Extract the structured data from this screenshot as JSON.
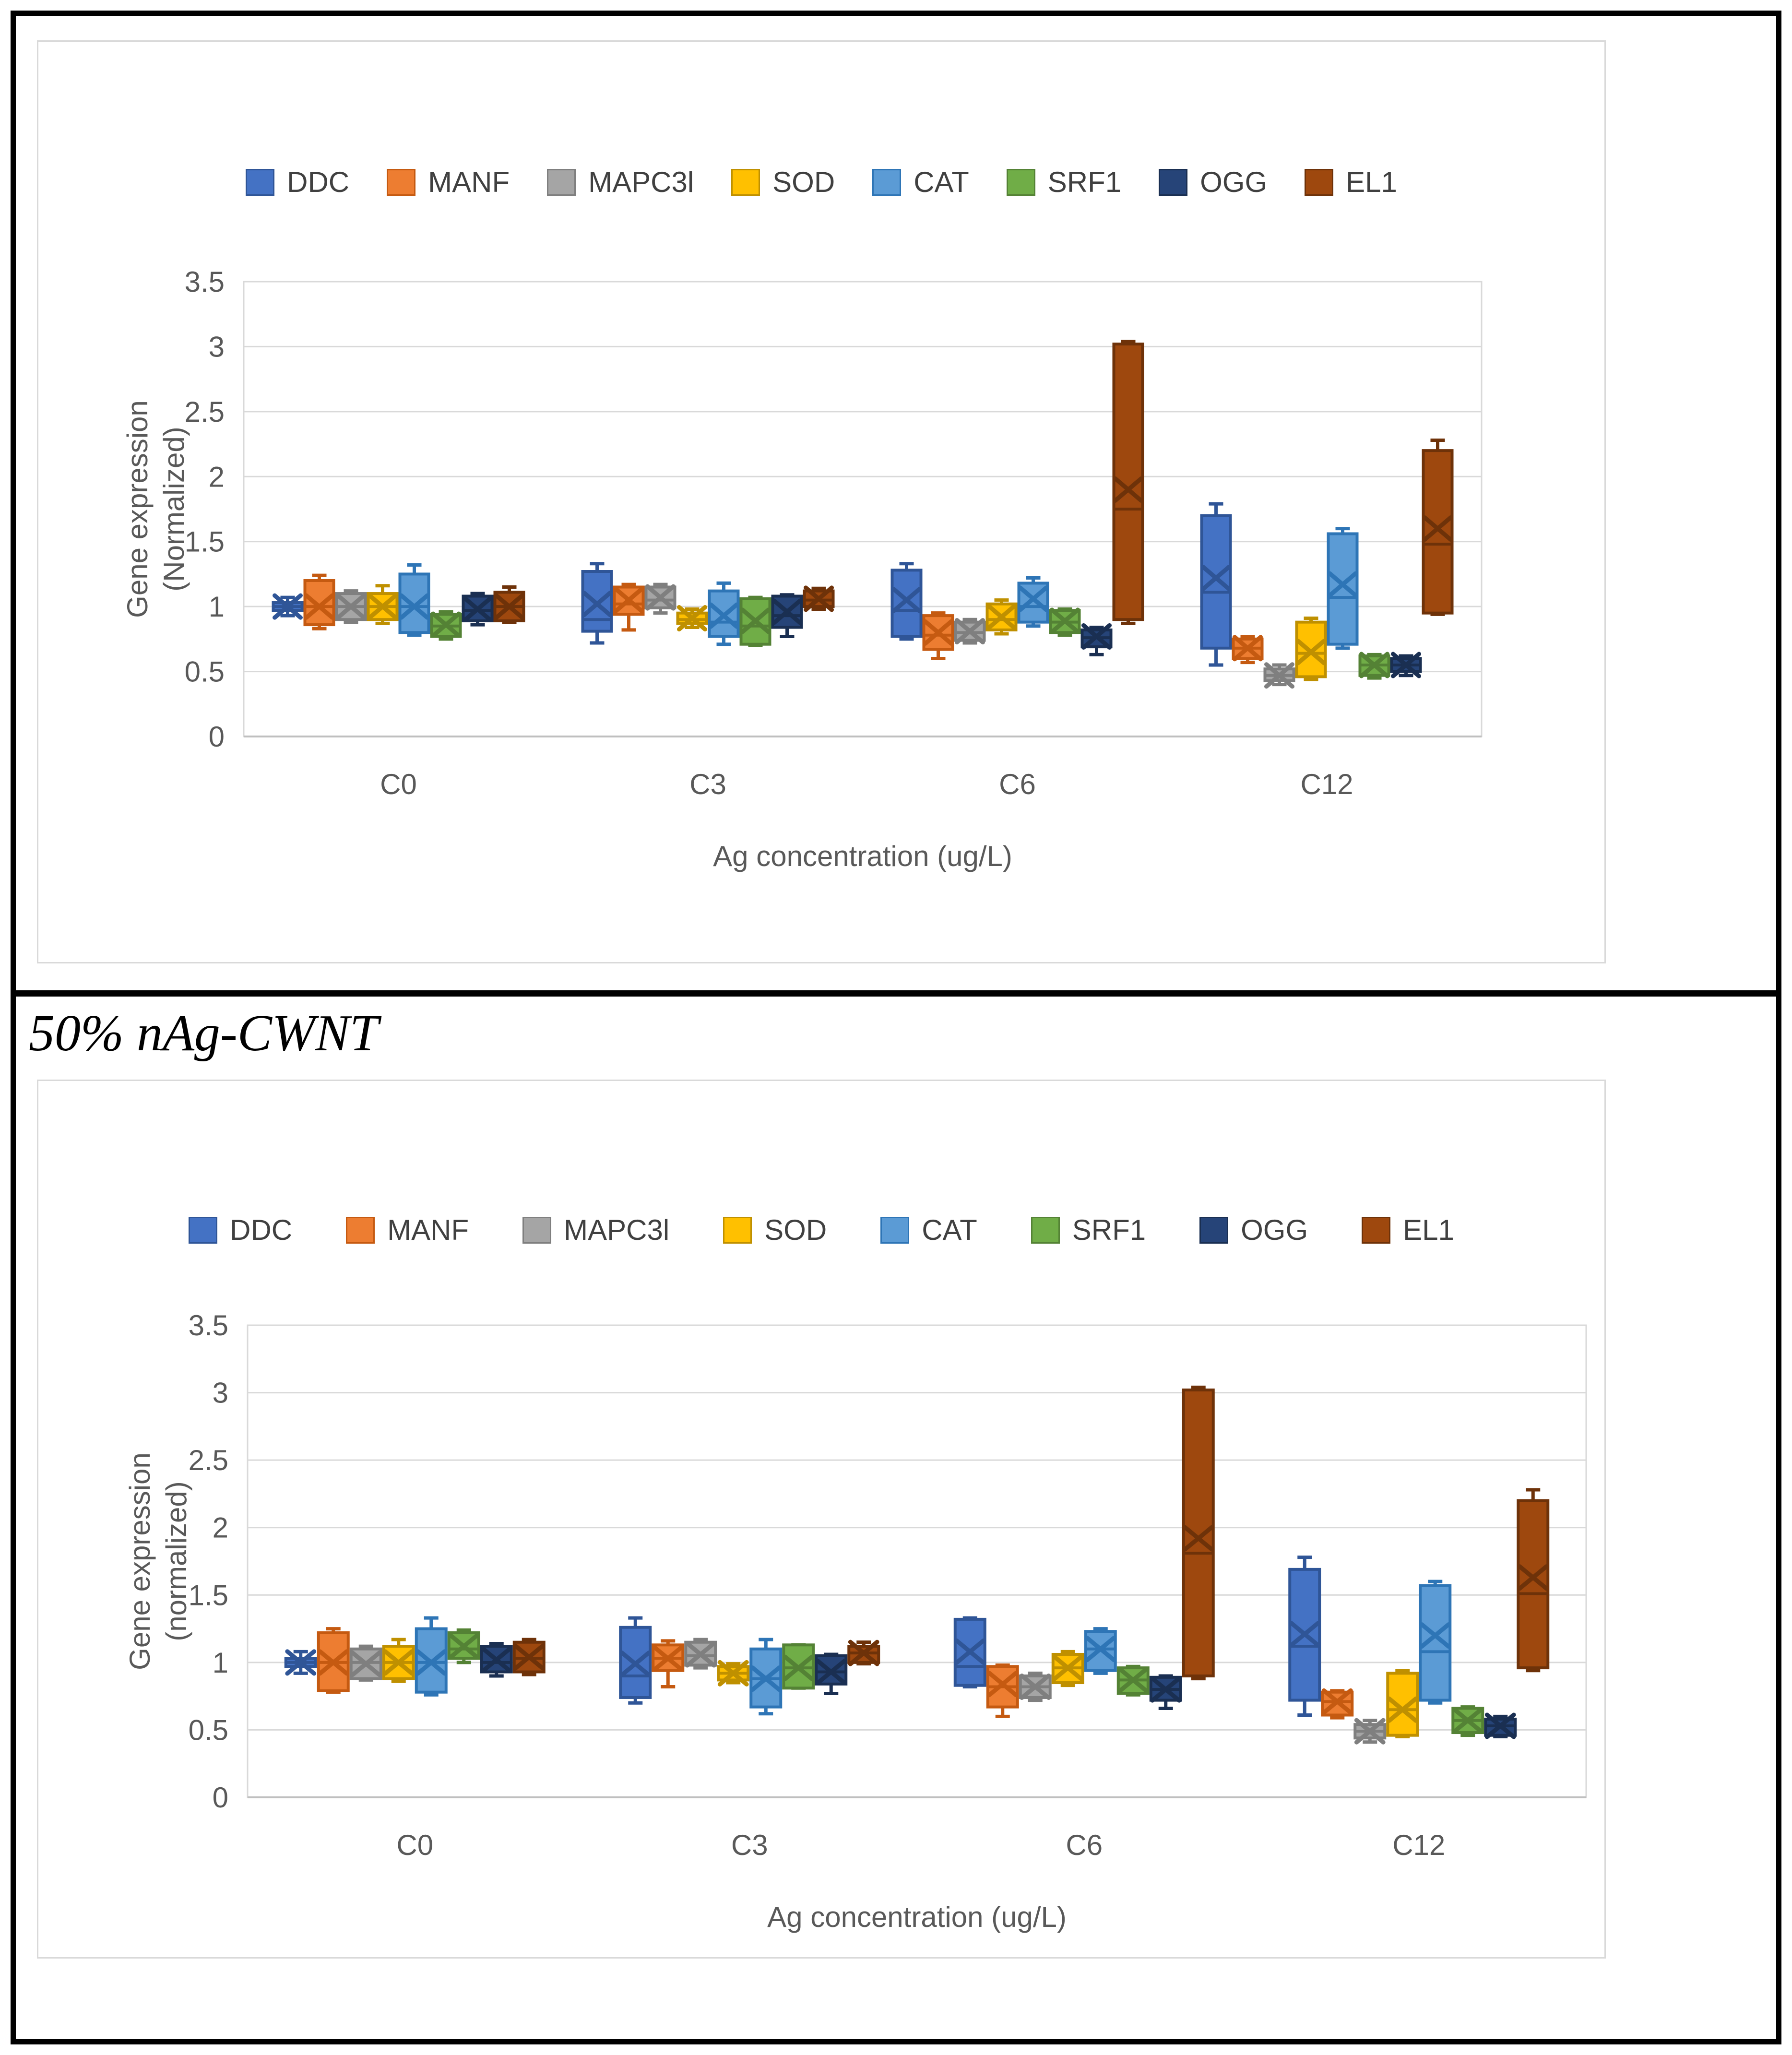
{
  "figure": {
    "caption": "50% nAg-CWNT"
  },
  "chart_data": [
    {
      "type": "box",
      "panel": "top",
      "title": "",
      "xlabel": "Ag concentration (ug/L)",
      "ylabel": "Gene expression (Normalized)",
      "ylabel_lines": [
        "Gene expression",
        "(Normalized)"
      ],
      "categories": [
        "C0",
        "C3",
        "C6",
        "C12"
      ],
      "ylim": [
        0,
        3.5
      ],
      "yticks": [
        "0",
        "0.5",
        "1",
        "1.5",
        "2",
        "2.5",
        "3",
        "3.5"
      ],
      "grid": true,
      "legend_position": "top",
      "box_stats_order": [
        "min",
        "q1",
        "median",
        "q3",
        "max",
        "mean"
      ],
      "series": [
        {
          "name": "DDC",
          "color": "#4472C4",
          "border_color": "#2F5597",
          "values": [
            [
              0.93,
              0.97,
              1.0,
              1.03,
              1.07,
              1.0
            ],
            [
              0.72,
              0.81,
              0.9,
              1.27,
              1.33,
              1.02
            ],
            [
              0.75,
              0.77,
              0.97,
              1.28,
              1.33,
              1.05
            ],
            [
              0.55,
              0.68,
              1.11,
              1.7,
              1.79,
              1.22
            ]
          ]
        },
        {
          "name": "MANF",
          "color": "#ED7D31",
          "border_color": "#C55A11",
          "values": [
            [
              0.83,
              0.86,
              1.0,
              1.2,
              1.24,
              1.0
            ],
            [
              0.82,
              0.94,
              1.02,
              1.15,
              1.17,
              1.05
            ],
            [
              0.6,
              0.67,
              0.78,
              0.93,
              0.95,
              0.8
            ],
            [
              0.57,
              0.6,
              0.68,
              0.75,
              0.77,
              0.68
            ]
          ]
        },
        {
          "name": "MAPC3l",
          "color": "#A5A5A5",
          "border_color": "#7F7F7F",
          "values": [
            [
              0.88,
              0.9,
              1.0,
              1.1,
              1.12,
              1.0
            ],
            [
              0.95,
              0.99,
              1.05,
              1.15,
              1.17,
              1.07
            ],
            [
              0.72,
              0.74,
              0.8,
              0.88,
              0.9,
              0.81
            ],
            [
              0.4,
              0.43,
              0.47,
              0.52,
              0.55,
              0.47
            ]
          ]
        },
        {
          "name": "SOD",
          "color": "#FFC000",
          "border_color": "#BF9000",
          "values": [
            [
              0.87,
              0.9,
              1.0,
              1.1,
              1.16,
              1.0
            ],
            [
              0.84,
              0.87,
              0.9,
              0.95,
              0.98,
              0.91
            ],
            [
              0.79,
              0.82,
              0.9,
              1.02,
              1.05,
              0.92
            ],
            [
              0.44,
              0.46,
              0.64,
              0.88,
              0.91,
              0.65
            ]
          ]
        },
        {
          "name": "CAT",
          "color": "#5B9BD5",
          "border_color": "#2E75B6",
          "values": [
            [
              0.78,
              0.8,
              1.0,
              1.25,
              1.32,
              1.0
            ],
            [
              0.71,
              0.77,
              0.88,
              1.12,
              1.18,
              0.93
            ],
            [
              0.85,
              0.88,
              1.0,
              1.18,
              1.22,
              1.06
            ],
            [
              0.68,
              0.71,
              1.07,
              1.56,
              1.6,
              1.17
            ]
          ]
        },
        {
          "name": "SRF1",
          "color": "#70AD47",
          "border_color": "#548235",
          "values": [
            [
              0.75,
              0.77,
              0.85,
              0.94,
              0.96,
              0.86
            ],
            [
              0.7,
              0.71,
              0.85,
              1.06,
              1.07,
              0.89
            ],
            [
              0.78,
              0.8,
              0.88,
              0.97,
              0.98,
              0.89
            ],
            [
              0.45,
              0.47,
              0.55,
              0.62,
              0.63,
              0.55
            ]
          ]
        },
        {
          "name": "OGG",
          "color": "#264478",
          "border_color": "#1A2F52",
          "values": [
            [
              0.86,
              0.89,
              0.97,
              1.08,
              1.1,
              0.98
            ],
            [
              0.77,
              0.84,
              0.93,
              1.08,
              1.09,
              0.96
            ],
            [
              0.63,
              0.69,
              0.76,
              0.82,
              0.84,
              0.77
            ],
            [
              0.47,
              0.5,
              0.55,
              0.6,
              0.62,
              0.55
            ]
          ]
        },
        {
          "name": "EL1",
          "color": "#9E480E",
          "border_color": "#6E3209",
          "values": [
            [
              0.88,
              0.89,
              1.0,
              1.11,
              1.15,
              1.0
            ],
            [
              0.98,
              1.0,
              1.05,
              1.12,
              1.14,
              1.06
            ],
            [
              0.87,
              0.9,
              1.75,
              3.02,
              3.04,
              1.9
            ],
            [
              0.94,
              0.95,
              1.48,
              2.2,
              2.28,
              1.6
            ]
          ]
        }
      ]
    },
    {
      "type": "box",
      "panel": "bottom",
      "title": "",
      "xlabel": "Ag concentration (ug/L)",
      "ylabel": "Gene expression (normalized)",
      "ylabel_lines": [
        "Gene expression",
        "(normalized)"
      ],
      "categories": [
        "C0",
        "C3",
        "C6",
        "C12"
      ],
      "ylim": [
        0,
        3.5
      ],
      "yticks": [
        "0",
        "0.5",
        "1",
        "1.5",
        "2",
        "2.5",
        "3",
        "3.5"
      ],
      "grid": true,
      "legend_position": "top",
      "box_stats_order": [
        "min",
        "q1",
        "median",
        "q3",
        "max",
        "mean"
      ],
      "series": [
        {
          "name": "DDC",
          "color": "#4472C4",
          "border_color": "#2F5597",
          "values": [
            [
              0.92,
              0.97,
              1.0,
              1.03,
              1.08,
              1.0
            ],
            [
              0.7,
              0.74,
              0.9,
              1.26,
              1.33,
              0.99
            ],
            [
              0.82,
              0.83,
              0.97,
              1.32,
              1.33,
              1.08
            ],
            [
              0.61,
              0.72,
              1.12,
              1.69,
              1.78,
              1.21
            ]
          ]
        },
        {
          "name": "MANF",
          "color": "#ED7D31",
          "border_color": "#C55A11",
          "values": [
            [
              0.78,
              0.79,
              1.0,
              1.22,
              1.25,
              1.0
            ],
            [
              0.82,
              0.94,
              1.03,
              1.13,
              1.16,
              1.03
            ],
            [
              0.6,
              0.67,
              0.82,
              0.97,
              0.98,
              0.84
            ],
            [
              0.59,
              0.61,
              0.71,
              0.78,
              0.79,
              0.71
            ]
          ]
        },
        {
          "name": "MAPC3l",
          "color": "#A5A5A5",
          "border_color": "#7F7F7F",
          "values": [
            [
              0.87,
              0.88,
              1.0,
              1.1,
              1.12,
              0.99
            ],
            [
              0.96,
              0.98,
              1.05,
              1.15,
              1.17,
              1.06
            ],
            [
              0.72,
              0.74,
              0.82,
              0.9,
              0.92,
              0.82
            ],
            [
              0.41,
              0.44,
              0.49,
              0.54,
              0.57,
              0.49
            ]
          ]
        },
        {
          "name": "SOD",
          "color": "#FFC000",
          "border_color": "#BF9000",
          "values": [
            [
              0.86,
              0.88,
              1.0,
              1.12,
              1.17,
              1.0
            ],
            [
              0.85,
              0.87,
              0.92,
              0.97,
              0.99,
              0.92
            ],
            [
              0.83,
              0.85,
              0.96,
              1.06,
              1.08,
              0.96
            ],
            [
              0.45,
              0.46,
              0.65,
              0.92,
              0.94,
              0.65
            ]
          ]
        },
        {
          "name": "CAT",
          "color": "#5B9BD5",
          "border_color": "#2E75B6",
          "values": [
            [
              0.76,
              0.78,
              1.0,
              1.25,
              1.33,
              1.0
            ],
            [
              0.62,
              0.67,
              0.88,
              1.1,
              1.17,
              0.88
            ],
            [
              0.92,
              0.94,
              1.1,
              1.23,
              1.25,
              1.1
            ],
            [
              0.7,
              0.72,
              1.08,
              1.57,
              1.6,
              1.2
            ]
          ]
        },
        {
          "name": "SRF1",
          "color": "#70AD47",
          "border_color": "#548235",
          "values": [
            [
              1.0,
              1.03,
              1.1,
              1.22,
              1.24,
              1.12
            ],
            [
              0.81,
              0.81,
              0.96,
              1.13,
              1.13,
              0.96
            ],
            [
              0.76,
              0.77,
              0.87,
              0.96,
              0.97,
              0.87
            ],
            [
              0.46,
              0.48,
              0.57,
              0.66,
              0.67,
              0.57
            ]
          ]
        },
        {
          "name": "OGG",
          "color": "#264478",
          "border_color": "#1A2F52",
          "values": [
            [
              0.9,
              0.93,
              1.0,
              1.12,
              1.14,
              1.02
            ],
            [
              0.77,
              0.84,
              0.93,
              1.05,
              1.06,
              0.93
            ],
            [
              0.66,
              0.72,
              0.8,
              0.89,
              0.9,
              0.8
            ],
            [
              0.45,
              0.46,
              0.53,
              0.58,
              0.6,
              0.53
            ]
          ]
        },
        {
          "name": "EL1",
          "color": "#9E480E",
          "border_color": "#6E3209",
          "values": [
            [
              0.91,
              0.93,
              1.03,
              1.15,
              1.17,
              1.04
            ],
            [
              0.99,
              1.0,
              1.07,
              1.12,
              1.15,
              1.07
            ],
            [
              0.88,
              0.9,
              1.81,
              3.02,
              3.04,
              1.92
            ],
            [
              0.94,
              0.96,
              1.51,
              2.2,
              2.28,
              1.63
            ]
          ]
        }
      ]
    }
  ]
}
